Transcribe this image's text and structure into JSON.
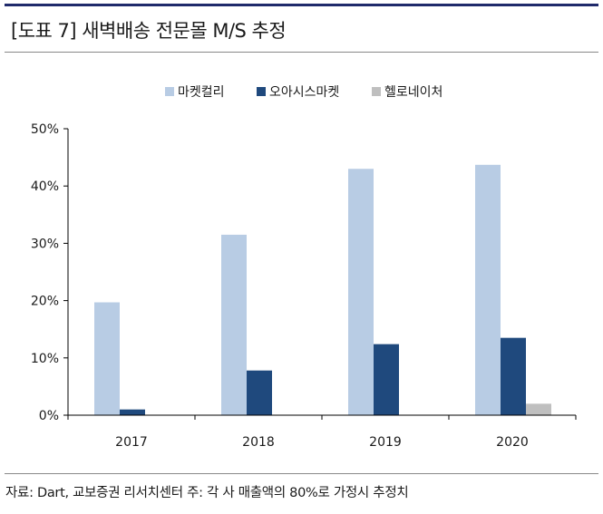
{
  "header": {
    "title": "[도표 7] 새벽배송 전문몰 M/S 추정"
  },
  "footer": {
    "source": "자료: Dart, 교보증권 리서치센터 주: 각 사 매출액의 80%로 가정시 추정치"
  },
  "chart_data": {
    "type": "bar",
    "categories": [
      "2017",
      "2018",
      "2019",
      "2020"
    ],
    "series": [
      {
        "name": "마켓컬리",
        "color": "#b8cce4",
        "values": [
          19.7,
          31.5,
          43.0,
          43.7
        ]
      },
      {
        "name": "오아시스마켓",
        "color": "#1f497d",
        "values": [
          1.0,
          7.8,
          12.4,
          13.5
        ]
      },
      {
        "name": "헬로네이처",
        "color": "#bfbfbf",
        "values": [
          null,
          null,
          null,
          2.0
        ]
      }
    ],
    "yticks": [
      "0%",
      "10%",
      "20%",
      "30%",
      "40%",
      "50%"
    ],
    "ylim": [
      0,
      50
    ],
    "legend_position": "top-center",
    "grid": false
  }
}
